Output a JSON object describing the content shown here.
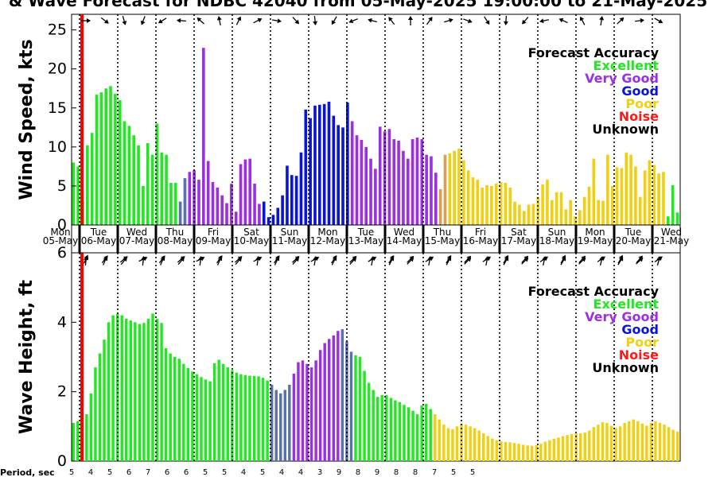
{
  "title": "& Wave Forecast for NDBC 42040 from 05-May-2025 19:00:00 to 21-May-2025",
  "legend": {
    "title": "Forecast Accuracy",
    "entries": [
      {
        "label": "Excellent",
        "color": "#22e822"
      },
      {
        "label": "Very Good",
        "color": "#9b30e0"
      },
      {
        "label": "Good",
        "color": "#0a14d8"
      },
      {
        "label": "Poor",
        "color": "#f0d010"
      },
      {
        "label": "Noise",
        "color": "#ff1a1a"
      },
      {
        "label": "Unknown",
        "color": "#000000"
      }
    ]
  },
  "colors": {
    "transition_blue": "#5a70a8",
    "transition_orange": "#d8a050",
    "nowline": "#ff0000"
  },
  "days": [
    {
      "dow": "Mon",
      "date": "05-May"
    },
    {
      "dow": "Tue",
      "date": "06-May"
    },
    {
      "dow": "Wed",
      "date": "07-May"
    },
    {
      "dow": "Thu",
      "date": "08-May"
    },
    {
      "dow": "Fri",
      "date": "09-May"
    },
    {
      "dow": "Sat",
      "date": "10-May"
    },
    {
      "dow": "Sun",
      "date": "11-May"
    },
    {
      "dow": "Mon",
      "date": "12-May"
    },
    {
      "dow": "Tue",
      "date": "13-May"
    },
    {
      "dow": "Wed",
      "date": "14-May"
    },
    {
      "dow": "Thu",
      "date": "15-May"
    },
    {
      "dow": "Fri",
      "date": "16-May"
    },
    {
      "dow": "Sat",
      "date": "17-May"
    },
    {
      "dow": "Sun",
      "date": "18-May"
    },
    {
      "dow": "Mon",
      "date": "19-May"
    },
    {
      "dow": "Tue",
      "date": "20-May"
    },
    {
      "dow": "Wed",
      "date": "21-May"
    }
  ],
  "period_label": "Period, sec",
  "periods": [
    "5",
    "4",
    "5",
    "6",
    "7",
    "6",
    "6",
    "5",
    "5",
    "4",
    "5",
    "4",
    "4",
    "3",
    "9",
    "8",
    "9",
    "8",
    "8",
    "7",
    "5",
    "5"
  ],
  "chart_data": [
    {
      "type": "bar",
      "ylabel": "Wind Speed, kts",
      "ylim": [
        0,
        27
      ],
      "yticks": [
        0,
        5,
        10,
        15,
        20,
        25
      ],
      "values": [
        8,
        7.5,
        3,
        10.2,
        11.8,
        16.7,
        17,
        17.5,
        17.8,
        16.8,
        16,
        13.3,
        12.7,
        11.5,
        10.2,
        5,
        10.5,
        9,
        13,
        9.3,
        9,
        5.4,
        5.4,
        3,
        6,
        6.8,
        7,
        5.8,
        22.7,
        8.2,
        5.5,
        4.8,
        3.8,
        2.8,
        5.3,
        1.7,
        7.8,
        8.4,
        8.5,
        5.3,
        2.7,
        3,
        1,
        1.3,
        2.2,
        3.8,
        7.6,
        6.4,
        6.3,
        9.3,
        14.8,
        13.7,
        15.3,
        15.4,
        15.5,
        15.8,
        14,
        12.8,
        12.5,
        15.7,
        13.3,
        11.5,
        10.9,
        10,
        8.5,
        7.2,
        12.6,
        12,
        12.3,
        11,
        10.8,
        9.5,
        8.5,
        11,
        11.2,
        11,
        9,
        8.8,
        6.7,
        4.6,
        9,
        9.2,
        9.5,
        9.8,
        8.3,
        7,
        6.1,
        5.8,
        4.8,
        5.1,
        5,
        5.3,
        5.5,
        5.4,
        4.8,
        3,
        2.6,
        1.8,
        2.6,
        2.7,
        3.6,
        5.2,
        5.8,
        3.2,
        4.2,
        4.2,
        2,
        3.2,
        1.1,
        1.9,
        3.6,
        4.9,
        8.5,
        3.2,
        3.1,
        9,
        5,
        7.4,
        7.3,
        9.3,
        9,
        7.5,
        3.6,
        7,
        8.3,
        7.7,
        6.6,
        6.8,
        1.1,
        5.1,
        1.6
      ],
      "groups": [
        {
          "from": 0,
          "to": 20,
          "color": "#22e822"
        },
        {
          "from": 21,
          "to": 22,
          "color": "#22e822"
        },
        {
          "from": 23,
          "to": 24,
          "color": "#5a70a8"
        },
        {
          "from": 25,
          "to": 40,
          "color": "#9b30e0"
        },
        {
          "from": 41,
          "to": 59,
          "color": "#0a14d8"
        },
        {
          "from": 60,
          "to": 78,
          "color": "#9b30e0"
        },
        {
          "from": 79,
          "to": 80,
          "color": "#d8a050"
        },
        {
          "from": 81,
          "to": 127,
          "color": "#f0d010"
        }
      ]
    },
    {
      "type": "bar",
      "ylabel": "Wave Height, ft",
      "ylim": [
        0,
        6
      ],
      "yticks": [
        0,
        2,
        4,
        6
      ],
      "values": [
        1.1,
        1.15,
        1.2,
        1.35,
        1.95,
        2.7,
        3.1,
        3.5,
        4.0,
        4.2,
        4.25,
        4.2,
        4.1,
        4.05,
        4.0,
        3.95,
        3.98,
        4.1,
        4.25,
        4.1,
        3.98,
        3.25,
        3.1,
        3.0,
        2.95,
        2.8,
        2.68,
        2.58,
        2.5,
        2.42,
        2.35,
        2.3,
        2.82,
        2.92,
        2.8,
        2.7,
        2.62,
        2.55,
        2.5,
        2.48,
        2.46,
        2.45,
        2.44,
        2.4,
        2.32,
        2.2,
        2.05,
        1.95,
        2.05,
        2.2,
        2.52,
        2.85,
        2.9,
        2.8,
        2.7,
        2.9,
        3.2,
        3.4,
        3.52,
        3.62,
        3.75,
        3.8,
        3.45,
        3.15,
        3.05,
        3.0,
        2.6,
        2.25,
        2.05,
        1.85,
        1.9,
        1.9,
        1.82,
        1.75,
        1.7,
        1.62,
        1.55,
        1.45,
        1.35,
        1.6,
        1.65,
        1.5,
        1.35,
        1.2,
        1.05,
        0.95,
        0.92,
        1.0,
        1.08,
        1.05,
        1.0,
        0.95,
        0.88,
        0.8,
        0.72,
        0.65,
        0.6,
        0.57,
        0.55,
        0.54,
        0.52,
        0.5,
        0.47,
        0.45,
        0.44,
        0.46,
        0.5,
        0.56,
        0.6,
        0.64,
        0.68,
        0.72,
        0.75,
        0.78,
        0.8,
        0.8,
        0.82,
        0.88,
        0.98,
        1.05,
        1.12,
        1.1,
        1.02,
        0.95,
        1.0,
        1.1,
        1.15,
        1.2,
        1.15,
        1.08,
        1.02,
        1.1,
        1.15,
        1.1,
        1.05,
        0.98,
        0.9,
        0.85
      ],
      "groups": [
        {
          "from": 0,
          "to": 49,
          "color": "#22e822"
        },
        {
          "from": 45,
          "to": 49,
          "color": "#5a70a8"
        },
        {
          "from": 50,
          "to": 60,
          "color": "#9b30e0"
        },
        {
          "from": 61,
          "to": 63,
          "color": "#5a70a8"
        },
        {
          "from": 64,
          "to": 81,
          "color": "#22e822"
        },
        {
          "from": 82,
          "to": 141,
          "color": "#f0d010"
        }
      ]
    }
  ]
}
